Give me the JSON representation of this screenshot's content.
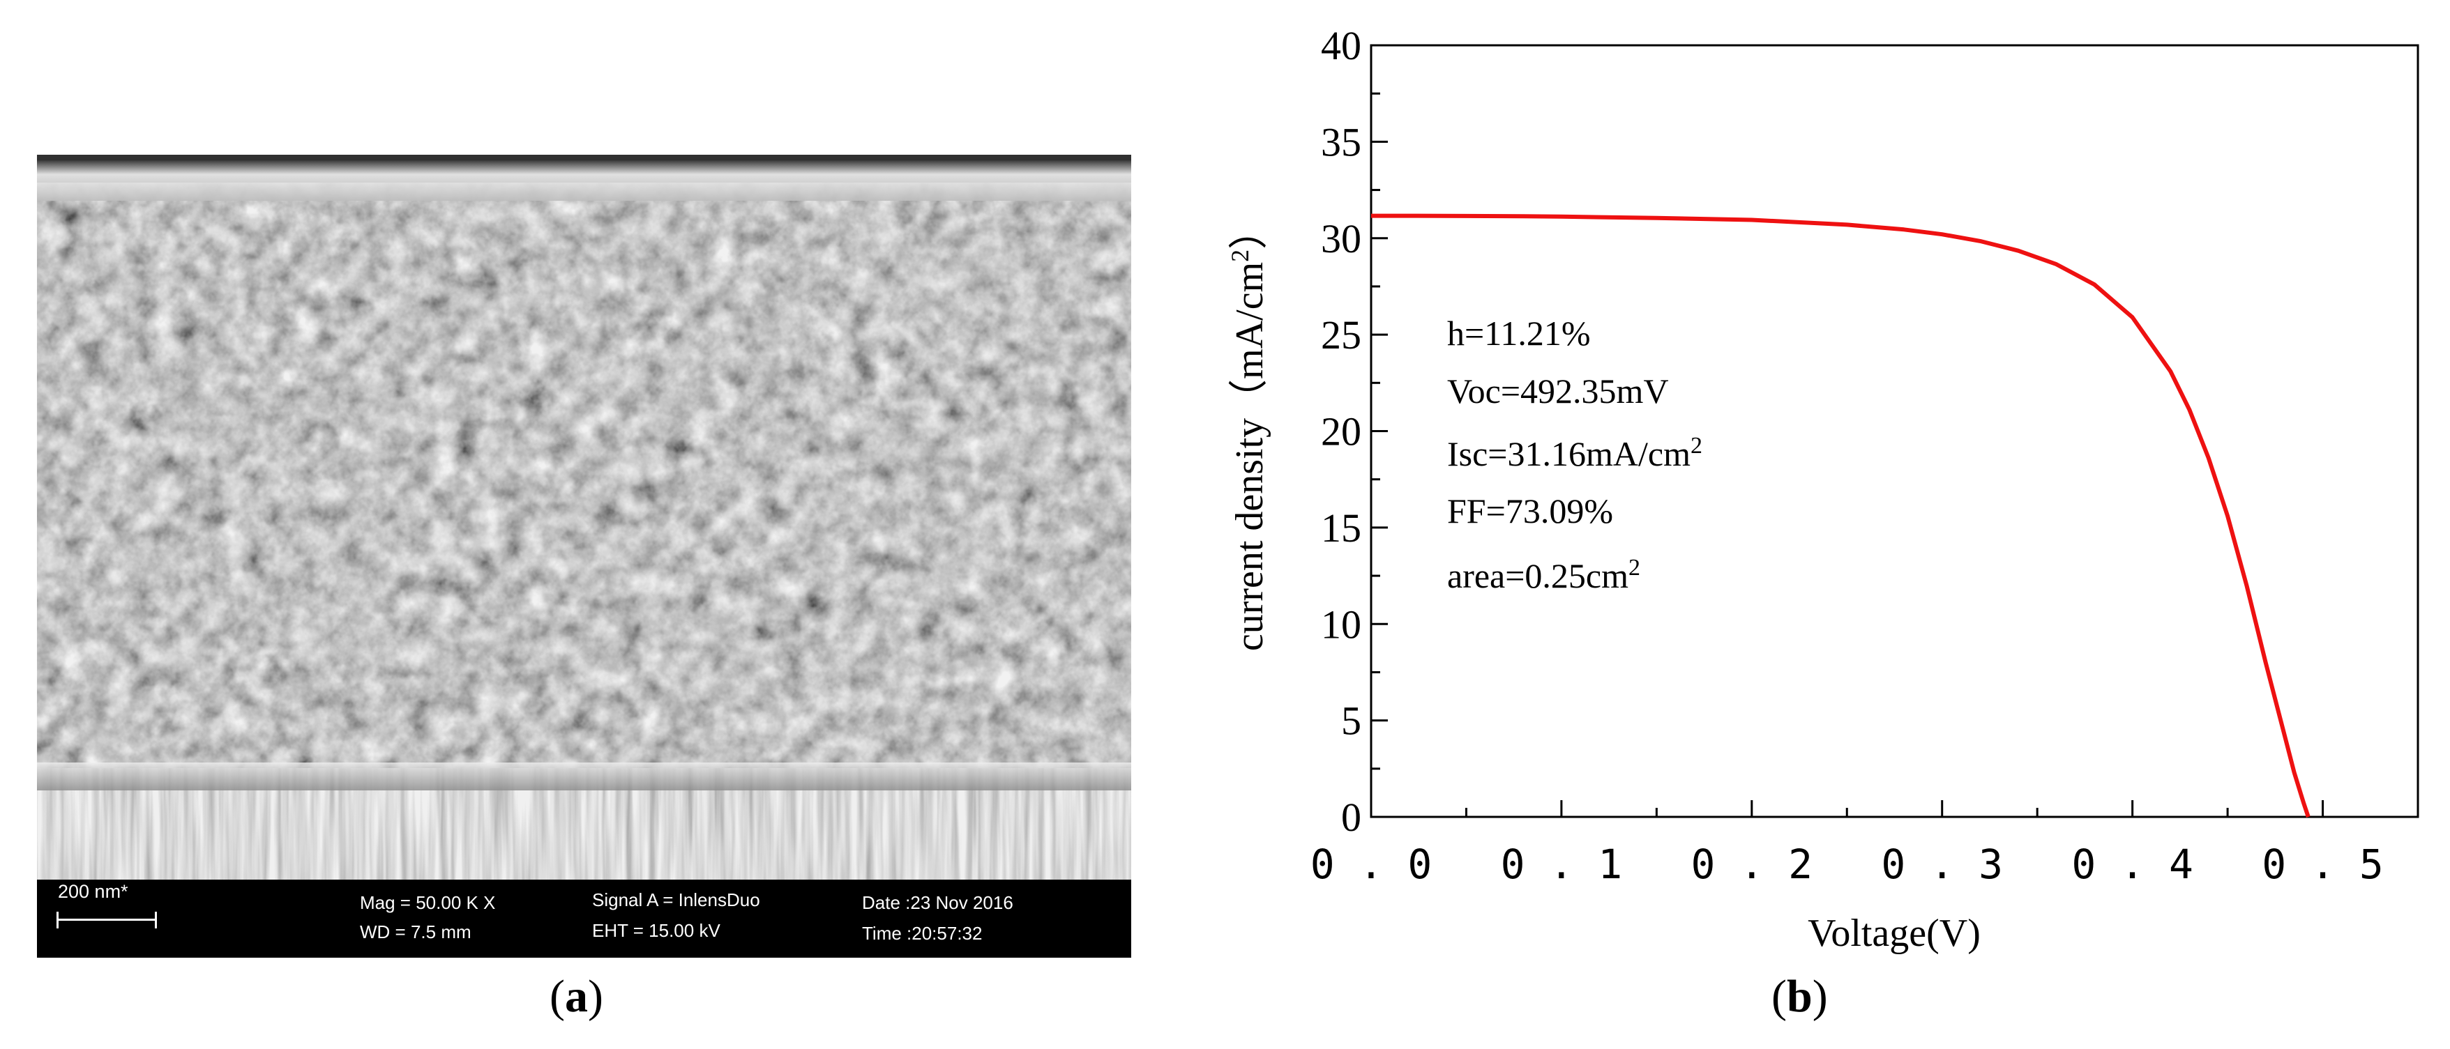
{
  "panel_a": {
    "label_letter": "a",
    "scale_bar_label": "200 nm*",
    "mag": "Mag =  50.00 K X",
    "wd": "WD = 7.5 mm",
    "signal": "Signal A = InlensDuo",
    "eht": "EHT = 15.00 kV",
    "date": "Date :23 Nov 2016",
    "time": "Time :20:57:32"
  },
  "panel_b": {
    "label_letter": "b"
  },
  "chart_data": {
    "type": "line",
    "title": "",
    "xlabel": "Voltage(V)",
    "ylabel": "current density（mA/cm",
    "ylabel_sup": "2",
    "ylabel_close": "）",
    "xlim": [
      0,
      0.55
    ],
    "ylim": [
      0,
      40
    ],
    "x_ticks": [
      "0.0",
      "0.1",
      "0.2",
      "0.3",
      "0.4",
      "0.5"
    ],
    "y_ticks": [
      "0",
      "5",
      "10",
      "15",
      "20",
      "25",
      "30",
      "35",
      "40"
    ],
    "grid": false,
    "legend": "none",
    "line_color": "#ee1111",
    "annotations": [
      {
        "text": "h=11.21%",
        "sup": ""
      },
      {
        "text": "Voc=492.35mV",
        "sup": ""
      },
      {
        "text": "Isc=31.16mA/cm",
        "sup": "2"
      },
      {
        "text": "FF=73.09%",
        "sup": ""
      },
      {
        "text": "area=0.25cm",
        "sup": "2"
      }
    ],
    "series": [
      {
        "x": [
          0.0,
          0.02,
          0.05,
          0.08,
          0.1,
          0.15,
          0.2,
          0.25,
          0.28,
          0.3,
          0.32,
          0.34,
          0.36,
          0.38,
          0.4,
          0.42,
          0.43,
          0.44,
          0.45,
          0.46,
          0.47,
          0.48,
          0.485,
          0.49,
          0.4924
        ],
        "y": [
          31.16,
          31.16,
          31.15,
          31.14,
          31.12,
          31.05,
          30.95,
          30.7,
          30.45,
          30.2,
          29.85,
          29.35,
          28.65,
          27.6,
          25.9,
          23.1,
          21.1,
          18.6,
          15.6,
          12.0,
          8.0,
          4.2,
          2.3,
          0.7,
          0.0
        ]
      }
    ]
  }
}
